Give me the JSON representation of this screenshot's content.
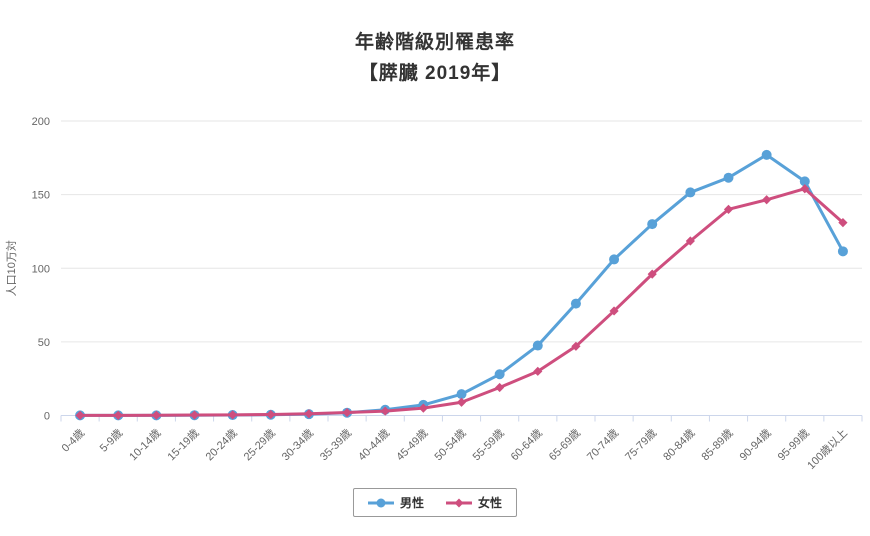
{
  "chart_data": {
    "type": "line",
    "title": "年齢階級別罹患率",
    "subtitle": "【膵臓 2019年】",
    "ylabel": "人口10万対",
    "xlabel": "",
    "ylim": [
      0,
      200
    ],
    "y_ticks": [
      0,
      50,
      100,
      150,
      200
    ],
    "grid": true,
    "legend_position": "bottom",
    "categories": [
      "0-4歳",
      "5-9歳",
      "10-14歳",
      "15-19歳",
      "20-24歳",
      "25-29歳",
      "30-34歳",
      "35-39歳",
      "40-44歳",
      "45-49歳",
      "50-54歳",
      "55-59歳",
      "60-64歳",
      "65-69歳",
      "70-74歳",
      "75-79歳",
      "80-84歳",
      "85-89歳",
      "90-94歳",
      "95-99歳",
      "100歳以上"
    ],
    "series": [
      {
        "name": "男性",
        "marker": "circle",
        "color": "#58A1D8",
        "values": [
          0.1,
          0.1,
          0.1,
          0.2,
          0.3,
          0.5,
          0.9,
          1.9,
          3.9,
          7.2,
          14.5,
          28,
          47.5,
          76,
          106,
          130,
          151.5,
          161.5,
          177,
          159,
          111.5
        ]
      },
      {
        "name": "女性",
        "marker": "diamond",
        "color": "#CE4E7E",
        "values": [
          0.1,
          0.1,
          0.2,
          0.3,
          0.4,
          0.7,
          1.2,
          2,
          3,
          5,
          9,
          19,
          30,
          47,
          71,
          96,
          118.5,
          140,
          146.5,
          154,
          131
        ]
      }
    ],
    "colors": {
      "grid_line": "#e6e6e6",
      "axis_line": "#ccd6eb",
      "tick_label": "#666666",
      "axis_title": "#666666",
      "title_text": "#333333",
      "legend_border": "#999999"
    }
  }
}
